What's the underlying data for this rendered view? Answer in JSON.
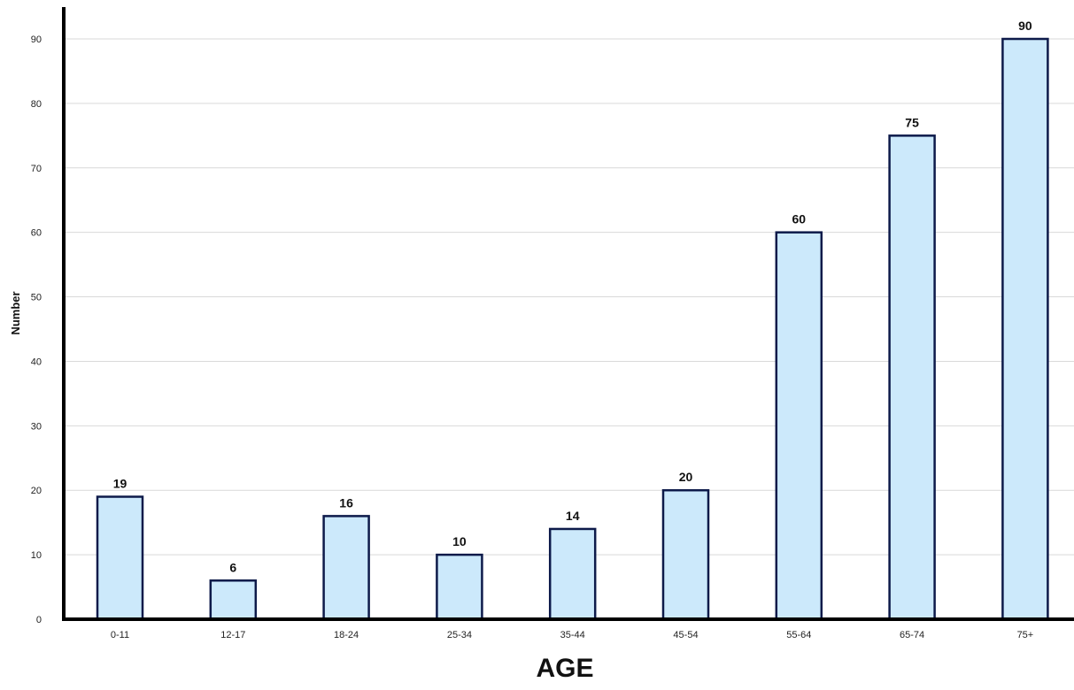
{
  "chart_data": {
    "type": "bar",
    "categories": [
      "0-11",
      "12-17",
      "18-24",
      "25-34",
      "35-44",
      "45-54",
      "55-64",
      "65-74",
      "75+"
    ],
    "values": [
      19,
      6,
      16,
      10,
      14,
      20,
      60,
      75,
      90
    ],
    "title": "",
    "xlabel": "AGE",
    "ylabel": "Number",
    "ylim": [
      0,
      95
    ],
    "yticks": [
      0,
      10,
      20,
      30,
      40,
      50,
      60,
      70,
      80,
      90
    ],
    "grid": true,
    "legend": "none",
    "show_value_labels": true
  },
  "colors": {
    "bar_fill": "#cce9fb",
    "bar_stroke": "#0d1a4a",
    "grid": "#d9d9d9",
    "axis": "#000000"
  }
}
